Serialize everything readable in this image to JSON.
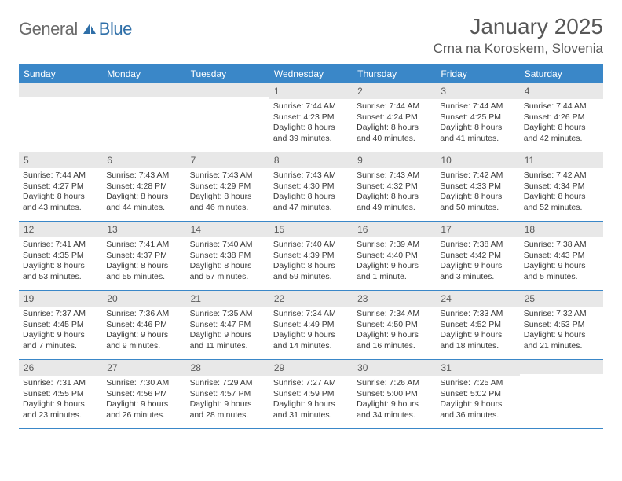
{
  "logo": {
    "gray": "General",
    "blue": "Blue"
  },
  "title": "January 2025",
  "location": "Crna na Koroskem, Slovenia",
  "colors": {
    "header_bg": "#3a87c8",
    "header_text": "#ffffff",
    "daynum_bg": "#e8e8e8",
    "daynum_text": "#5a5a5a",
    "body_text": "#3a3a3a",
    "rule": "#3a87c8"
  },
  "dow": [
    "Sunday",
    "Monday",
    "Tuesday",
    "Wednesday",
    "Thursday",
    "Friday",
    "Saturday"
  ],
  "weeks": [
    [
      {
        "num": "",
        "sunrise": "",
        "sunset": "",
        "daylight1": "",
        "daylight2": ""
      },
      {
        "num": "",
        "sunrise": "",
        "sunset": "",
        "daylight1": "",
        "daylight2": ""
      },
      {
        "num": "",
        "sunrise": "",
        "sunset": "",
        "daylight1": "",
        "daylight2": ""
      },
      {
        "num": "1",
        "sunrise": "Sunrise: 7:44 AM",
        "sunset": "Sunset: 4:23 PM",
        "daylight1": "Daylight: 8 hours",
        "daylight2": "and 39 minutes."
      },
      {
        "num": "2",
        "sunrise": "Sunrise: 7:44 AM",
        "sunset": "Sunset: 4:24 PM",
        "daylight1": "Daylight: 8 hours",
        "daylight2": "and 40 minutes."
      },
      {
        "num": "3",
        "sunrise": "Sunrise: 7:44 AM",
        "sunset": "Sunset: 4:25 PM",
        "daylight1": "Daylight: 8 hours",
        "daylight2": "and 41 minutes."
      },
      {
        "num": "4",
        "sunrise": "Sunrise: 7:44 AM",
        "sunset": "Sunset: 4:26 PM",
        "daylight1": "Daylight: 8 hours",
        "daylight2": "and 42 minutes."
      }
    ],
    [
      {
        "num": "5",
        "sunrise": "Sunrise: 7:44 AM",
        "sunset": "Sunset: 4:27 PM",
        "daylight1": "Daylight: 8 hours",
        "daylight2": "and 43 minutes."
      },
      {
        "num": "6",
        "sunrise": "Sunrise: 7:43 AM",
        "sunset": "Sunset: 4:28 PM",
        "daylight1": "Daylight: 8 hours",
        "daylight2": "and 44 minutes."
      },
      {
        "num": "7",
        "sunrise": "Sunrise: 7:43 AM",
        "sunset": "Sunset: 4:29 PM",
        "daylight1": "Daylight: 8 hours",
        "daylight2": "and 46 minutes."
      },
      {
        "num": "8",
        "sunrise": "Sunrise: 7:43 AM",
        "sunset": "Sunset: 4:30 PM",
        "daylight1": "Daylight: 8 hours",
        "daylight2": "and 47 minutes."
      },
      {
        "num": "9",
        "sunrise": "Sunrise: 7:43 AM",
        "sunset": "Sunset: 4:32 PM",
        "daylight1": "Daylight: 8 hours",
        "daylight2": "and 49 minutes."
      },
      {
        "num": "10",
        "sunrise": "Sunrise: 7:42 AM",
        "sunset": "Sunset: 4:33 PM",
        "daylight1": "Daylight: 8 hours",
        "daylight2": "and 50 minutes."
      },
      {
        "num": "11",
        "sunrise": "Sunrise: 7:42 AM",
        "sunset": "Sunset: 4:34 PM",
        "daylight1": "Daylight: 8 hours",
        "daylight2": "and 52 minutes."
      }
    ],
    [
      {
        "num": "12",
        "sunrise": "Sunrise: 7:41 AM",
        "sunset": "Sunset: 4:35 PM",
        "daylight1": "Daylight: 8 hours",
        "daylight2": "and 53 minutes."
      },
      {
        "num": "13",
        "sunrise": "Sunrise: 7:41 AM",
        "sunset": "Sunset: 4:37 PM",
        "daylight1": "Daylight: 8 hours",
        "daylight2": "and 55 minutes."
      },
      {
        "num": "14",
        "sunrise": "Sunrise: 7:40 AM",
        "sunset": "Sunset: 4:38 PM",
        "daylight1": "Daylight: 8 hours",
        "daylight2": "and 57 minutes."
      },
      {
        "num": "15",
        "sunrise": "Sunrise: 7:40 AM",
        "sunset": "Sunset: 4:39 PM",
        "daylight1": "Daylight: 8 hours",
        "daylight2": "and 59 minutes."
      },
      {
        "num": "16",
        "sunrise": "Sunrise: 7:39 AM",
        "sunset": "Sunset: 4:40 PM",
        "daylight1": "Daylight: 9 hours",
        "daylight2": "and 1 minute."
      },
      {
        "num": "17",
        "sunrise": "Sunrise: 7:38 AM",
        "sunset": "Sunset: 4:42 PM",
        "daylight1": "Daylight: 9 hours",
        "daylight2": "and 3 minutes."
      },
      {
        "num": "18",
        "sunrise": "Sunrise: 7:38 AM",
        "sunset": "Sunset: 4:43 PM",
        "daylight1": "Daylight: 9 hours",
        "daylight2": "and 5 minutes."
      }
    ],
    [
      {
        "num": "19",
        "sunrise": "Sunrise: 7:37 AM",
        "sunset": "Sunset: 4:45 PM",
        "daylight1": "Daylight: 9 hours",
        "daylight2": "and 7 minutes."
      },
      {
        "num": "20",
        "sunrise": "Sunrise: 7:36 AM",
        "sunset": "Sunset: 4:46 PM",
        "daylight1": "Daylight: 9 hours",
        "daylight2": "and 9 minutes."
      },
      {
        "num": "21",
        "sunrise": "Sunrise: 7:35 AM",
        "sunset": "Sunset: 4:47 PM",
        "daylight1": "Daylight: 9 hours",
        "daylight2": "and 11 minutes."
      },
      {
        "num": "22",
        "sunrise": "Sunrise: 7:34 AM",
        "sunset": "Sunset: 4:49 PM",
        "daylight1": "Daylight: 9 hours",
        "daylight2": "and 14 minutes."
      },
      {
        "num": "23",
        "sunrise": "Sunrise: 7:34 AM",
        "sunset": "Sunset: 4:50 PM",
        "daylight1": "Daylight: 9 hours",
        "daylight2": "and 16 minutes."
      },
      {
        "num": "24",
        "sunrise": "Sunrise: 7:33 AM",
        "sunset": "Sunset: 4:52 PM",
        "daylight1": "Daylight: 9 hours",
        "daylight2": "and 18 minutes."
      },
      {
        "num": "25",
        "sunrise": "Sunrise: 7:32 AM",
        "sunset": "Sunset: 4:53 PM",
        "daylight1": "Daylight: 9 hours",
        "daylight2": "and 21 minutes."
      }
    ],
    [
      {
        "num": "26",
        "sunrise": "Sunrise: 7:31 AM",
        "sunset": "Sunset: 4:55 PM",
        "daylight1": "Daylight: 9 hours",
        "daylight2": "and 23 minutes."
      },
      {
        "num": "27",
        "sunrise": "Sunrise: 7:30 AM",
        "sunset": "Sunset: 4:56 PM",
        "daylight1": "Daylight: 9 hours",
        "daylight2": "and 26 minutes."
      },
      {
        "num": "28",
        "sunrise": "Sunrise: 7:29 AM",
        "sunset": "Sunset: 4:57 PM",
        "daylight1": "Daylight: 9 hours",
        "daylight2": "and 28 minutes."
      },
      {
        "num": "29",
        "sunrise": "Sunrise: 7:27 AM",
        "sunset": "Sunset: 4:59 PM",
        "daylight1": "Daylight: 9 hours",
        "daylight2": "and 31 minutes."
      },
      {
        "num": "30",
        "sunrise": "Sunrise: 7:26 AM",
        "sunset": "Sunset: 5:00 PM",
        "daylight1": "Daylight: 9 hours",
        "daylight2": "and 34 minutes."
      },
      {
        "num": "31",
        "sunrise": "Sunrise: 7:25 AM",
        "sunset": "Sunset: 5:02 PM",
        "daylight1": "Daylight: 9 hours",
        "daylight2": "and 36 minutes."
      },
      {
        "num": "",
        "sunrise": "",
        "sunset": "",
        "daylight1": "",
        "daylight2": ""
      }
    ]
  ]
}
